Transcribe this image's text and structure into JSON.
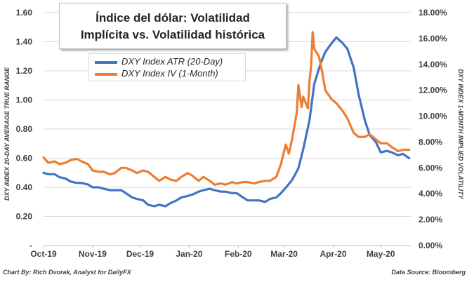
{
  "chart_data": {
    "type": "line",
    "title_lines": [
      "Índice del dólar: Volatilidad",
      "Implícita vs. Volatilidad histórica"
    ],
    "y_left_label": "DXY INDEX 20-DAY AVERAGE TRUE RANGE",
    "y_right_label": "DXY INDEX 1-MONTH IMPLIED VOLATILITY",
    "y_left_ticks": [
      "-",
      "0.20",
      "0.40",
      "0.60",
      "0.80",
      "1.00",
      "1.20",
      "1.40",
      "1.60"
    ],
    "y_right_ticks": [
      "0.00%",
      "2.00%",
      "4.00%",
      "6.00%",
      "8.00%",
      "10.00%",
      "12.00%",
      "14.00%",
      "16.00%",
      "18.00%"
    ],
    "x_ticks": [
      "Oct-19",
      "Nov-19",
      "Dec-19",
      "Jan-20",
      "Feb-20",
      "Mar-20",
      "Apr-20",
      "May-20"
    ],
    "ylim_left": [
      0,
      1.6
    ],
    "ylim_right": [
      0,
      18
    ],
    "xlim": [
      "2019-10-01",
      "2020-05-20"
    ],
    "grid": "horizontal",
    "series": [
      {
        "name": "DXY Index ATR (20-Day)",
        "axis": "left",
        "color": "#4472c4",
        "points": [
          [
            "2019-10-01",
            0.5
          ],
          [
            "2019-10-04",
            0.49
          ],
          [
            "2019-10-08",
            0.49
          ],
          [
            "2019-10-11",
            0.47
          ],
          [
            "2019-10-15",
            0.46
          ],
          [
            "2019-10-18",
            0.44
          ],
          [
            "2019-10-22",
            0.43
          ],
          [
            "2019-10-25",
            0.43
          ],
          [
            "2019-10-29",
            0.42
          ],
          [
            "2019-11-01",
            0.4
          ],
          [
            "2019-11-05",
            0.4
          ],
          [
            "2019-11-08",
            0.39
          ],
          [
            "2019-11-12",
            0.38
          ],
          [
            "2019-11-15",
            0.38
          ],
          [
            "2019-11-19",
            0.38
          ],
          [
            "2019-11-22",
            0.36
          ],
          [
            "2019-11-26",
            0.33
          ],
          [
            "2019-11-29",
            0.32
          ],
          [
            "2019-12-03",
            0.31
          ],
          [
            "2019-12-06",
            0.28
          ],
          [
            "2019-12-10",
            0.27
          ],
          [
            "2019-12-13",
            0.28
          ],
          [
            "2019-12-17",
            0.27
          ],
          [
            "2019-12-20",
            0.29
          ],
          [
            "2019-12-24",
            0.31
          ],
          [
            "2019-12-27",
            0.33
          ],
          [
            "2019-12-31",
            0.34
          ],
          [
            "2020-01-03",
            0.35
          ],
          [
            "2020-01-07",
            0.37
          ],
          [
            "2020-01-10",
            0.38
          ],
          [
            "2020-01-14",
            0.39
          ],
          [
            "2020-01-17",
            0.38
          ],
          [
            "2020-01-21",
            0.37
          ],
          [
            "2020-01-24",
            0.37
          ],
          [
            "2020-01-28",
            0.36
          ],
          [
            "2020-01-31",
            0.36
          ],
          [
            "2020-02-04",
            0.33
          ],
          [
            "2020-02-07",
            0.31
          ],
          [
            "2020-02-11",
            0.31
          ],
          [
            "2020-02-14",
            0.31
          ],
          [
            "2020-02-18",
            0.3
          ],
          [
            "2020-02-21",
            0.32
          ],
          [
            "2020-02-25",
            0.33
          ],
          [
            "2020-02-28",
            0.36
          ],
          [
            "2020-03-03",
            0.41
          ],
          [
            "2020-03-06",
            0.45
          ],
          [
            "2020-03-10",
            0.53
          ],
          [
            "2020-03-13",
            0.66
          ],
          [
            "2020-03-17",
            0.86
          ],
          [
            "2020-03-20",
            1.11
          ],
          [
            "2020-03-24",
            1.25
          ],
          [
            "2020-03-27",
            1.33
          ],
          [
            "2020-03-31",
            1.39
          ],
          [
            "2020-04-03",
            1.43
          ],
          [
            "2020-04-07",
            1.39
          ],
          [
            "2020-04-10",
            1.35
          ],
          [
            "2020-04-14",
            1.22
          ],
          [
            "2020-04-17",
            1.04
          ],
          [
            "2020-04-21",
            0.86
          ],
          [
            "2020-04-24",
            0.76
          ],
          [
            "2020-04-28",
            0.71
          ],
          [
            "2020-05-01",
            0.64
          ],
          [
            "2020-05-05",
            0.65
          ],
          [
            "2020-05-08",
            0.64
          ],
          [
            "2020-05-12",
            0.62
          ],
          [
            "2020-05-15",
            0.63
          ],
          [
            "2020-05-19",
            0.6
          ]
        ]
      },
      {
        "name": "DXY Index IV (1-Month)",
        "axis": "right",
        "color": "#ed7d31",
        "points": [
          [
            "2019-10-01",
            6.8
          ],
          [
            "2019-10-04",
            6.4
          ],
          [
            "2019-10-08",
            6.5
          ],
          [
            "2019-10-11",
            6.3
          ],
          [
            "2019-10-15",
            6.4
          ],
          [
            "2019-10-18",
            6.6
          ],
          [
            "2019-10-22",
            6.7
          ],
          [
            "2019-10-25",
            6.5
          ],
          [
            "2019-10-29",
            6.3
          ],
          [
            "2019-11-01",
            5.8
          ],
          [
            "2019-11-05",
            5.7
          ],
          [
            "2019-11-08",
            5.7
          ],
          [
            "2019-11-12",
            5.5
          ],
          [
            "2019-11-15",
            5.6
          ],
          [
            "2019-11-19",
            6.0
          ],
          [
            "2019-11-22",
            6.0
          ],
          [
            "2019-11-26",
            5.8
          ],
          [
            "2019-11-29",
            5.6
          ],
          [
            "2019-12-03",
            5.8
          ],
          [
            "2019-12-06",
            5.7
          ],
          [
            "2019-12-10",
            5.3
          ],
          [
            "2019-12-13",
            5.0
          ],
          [
            "2019-12-17",
            5.3
          ],
          [
            "2019-12-20",
            5.1
          ],
          [
            "2019-12-24",
            5.0
          ],
          [
            "2019-12-27",
            5.3
          ],
          [
            "2019-12-31",
            5.6
          ],
          [
            "2020-01-03",
            5.4
          ],
          [
            "2020-01-07",
            5.0
          ],
          [
            "2020-01-10",
            5.3
          ],
          [
            "2020-01-14",
            5.0
          ],
          [
            "2020-01-17",
            4.7
          ],
          [
            "2020-01-21",
            4.8
          ],
          [
            "2020-01-24",
            4.7
          ],
          [
            "2020-01-28",
            4.9
          ],
          [
            "2020-01-31",
            4.8
          ],
          [
            "2020-02-04",
            4.9
          ],
          [
            "2020-02-07",
            4.9
          ],
          [
            "2020-02-11",
            4.8
          ],
          [
            "2020-02-14",
            4.9
          ],
          [
            "2020-02-18",
            5.0
          ],
          [
            "2020-02-21",
            5.0
          ],
          [
            "2020-02-25",
            5.3
          ],
          [
            "2020-02-28",
            6.3
          ],
          [
            "2020-03-02",
            7.8
          ],
          [
            "2020-03-04",
            7.1
          ],
          [
            "2020-03-06",
            8.2
          ],
          [
            "2020-03-09",
            10.3
          ],
          [
            "2020-03-10",
            12.4
          ],
          [
            "2020-03-12",
            10.7
          ],
          [
            "2020-03-13",
            11.5
          ],
          [
            "2020-03-16",
            10.6
          ],
          [
            "2020-03-17",
            12.7
          ],
          [
            "2020-03-18",
            13.8
          ],
          [
            "2020-03-19",
            16.5
          ],
          [
            "2020-03-20",
            15.2
          ],
          [
            "2020-03-23",
            14.6
          ],
          [
            "2020-03-25",
            13.4
          ],
          [
            "2020-03-27",
            12.0
          ],
          [
            "2020-03-31",
            11.3
          ],
          [
            "2020-04-03",
            11.0
          ],
          [
            "2020-04-07",
            10.4
          ],
          [
            "2020-04-10",
            9.8
          ],
          [
            "2020-04-14",
            8.7
          ],
          [
            "2020-04-17",
            8.4
          ],
          [
            "2020-04-21",
            8.4
          ],
          [
            "2020-04-24",
            8.6
          ],
          [
            "2020-04-28",
            8.2
          ],
          [
            "2020-05-01",
            7.9
          ],
          [
            "2020-05-05",
            7.9
          ],
          [
            "2020-05-08",
            7.6
          ],
          [
            "2020-05-12",
            7.3
          ],
          [
            "2020-05-15",
            7.4
          ],
          [
            "2020-05-19",
            7.4
          ]
        ]
      }
    ]
  },
  "footer": {
    "left": "Chart By: Rich Dvorak, Analyst for DailyFX",
    "right": "Data Source: Bloomberg"
  }
}
